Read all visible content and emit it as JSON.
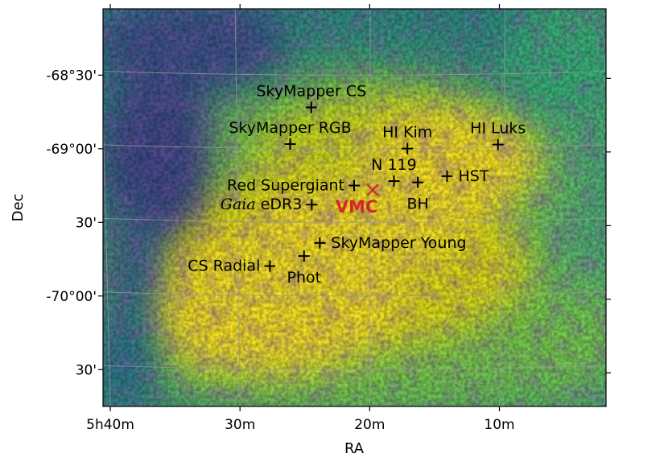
{
  "chart_data": {
    "type": "scatter",
    "background": "heatmap",
    "colormap": [
      "#440154",
      "#3b528b",
      "#21918c",
      "#5ec962",
      "#fde725"
    ],
    "xlabel": "RA",
    "ylabel": "Dec",
    "x_ticks": [
      {
        "label": "5h40m",
        "value": 85.0
      },
      {
        "label": "30m",
        "value": 82.5
      },
      {
        "label": "20m",
        "value": 80.0
      },
      {
        "label": "10m",
        "value": 77.5
      }
    ],
    "y_ticks": [
      {
        "label": "-68°30'",
        "value": -68.5
      },
      {
        "label": "-69°00'",
        "value": -69.0
      },
      {
        "label": "30'",
        "value": -69.5
      },
      {
        "label": "-70°00'",
        "value": -70.0
      },
      {
        "label": "30'",
        "value": -70.5
      }
    ],
    "xlim": [
      85.0,
      75.5
    ],
    "ylim": [
      -70.75,
      -68.05
    ],
    "grid": true,
    "markers": [
      {
        "name": "SkyMapper CS",
        "ra": 81.1,
        "dec": -68.72,
        "label_pos": "above"
      },
      {
        "name": "SkyMapper RGB",
        "ra": 81.5,
        "dec": -68.97,
        "label_pos": "above"
      },
      {
        "name": "HI Kim",
        "ra": 79.3,
        "dec": -69.0,
        "label_pos": "above"
      },
      {
        "name": "HI Luks",
        "ra": 77.6,
        "dec": -68.98,
        "label_pos": "above"
      },
      {
        "name": "N 119",
        "ra": 79.55,
        "dec": -69.22,
        "label_pos": "above"
      },
      {
        "name": "Red Supergiant",
        "ra": 80.3,
        "dec": -69.25,
        "label_pos": "left"
      },
      {
        "name": "BH",
        "ra": 79.1,
        "dec": -69.23,
        "label_pos": "below"
      },
      {
        "name": "HST",
        "ra": 78.55,
        "dec": -69.19,
        "label_pos": "right"
      },
      {
        "name": "eDR3",
        "prefix": "Gaia",
        "ra": 81.1,
        "dec": -69.38,
        "label_pos": "left"
      },
      {
        "name": "SkyMapper Young",
        "ra": 80.95,
        "dec": -69.64,
        "label_pos": "right"
      },
      {
        "name": "Phot",
        "ra": 81.25,
        "dec": -69.73,
        "label_pos": "below"
      },
      {
        "name": "CS Radial",
        "ra": 81.9,
        "dec": -69.8,
        "label_pos": "left"
      }
    ],
    "highlight": {
      "name": "VMC",
      "ra": 79.95,
      "dec": -69.28,
      "marker": "x",
      "color": "#d62728"
    }
  }
}
